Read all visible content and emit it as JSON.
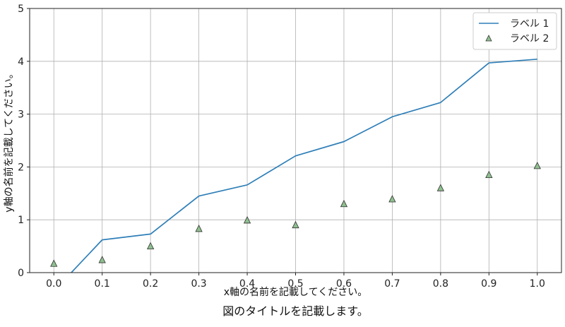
{
  "chart_data": {
    "type": "line",
    "title": "図のタイトルを記載します。",
    "xlabel": "x軸の名前を記載してください。",
    "ylabel": "y軸の名前を記載してください。",
    "xlim": [
      -0.05,
      1.05
    ],
    "ylim": [
      0,
      5
    ],
    "x_ticks": [
      "0.0",
      "0.1",
      "0.2",
      "0.3",
      "0.4",
      "0.5",
      "0.6",
      "0.7",
      "0.8",
      "0.9",
      "1.0"
    ],
    "y_ticks": [
      "0",
      "1",
      "2",
      "3",
      "4",
      "5"
    ],
    "grid": true,
    "legend_position": "top-right",
    "series": [
      {
        "name": "ラベル 1",
        "kind": "line",
        "color": "#2f7fb8",
        "x": [
          0.0,
          0.1,
          0.2,
          0.3,
          0.4,
          0.5,
          0.6,
          0.7,
          0.8,
          0.9,
          1.0
        ],
        "y": [
          -0.35,
          0.62,
          0.73,
          1.45,
          1.66,
          2.21,
          2.48,
          2.95,
          3.22,
          3.97,
          4.04
        ]
      },
      {
        "name": "ラベル 2",
        "kind": "scatter",
        "marker": "triangle",
        "color": "#8fbf8f",
        "edge_color": "#333333",
        "x": [
          0.0,
          0.1,
          0.2,
          0.3,
          0.4,
          0.5,
          0.6,
          0.7,
          0.8,
          0.9,
          1.0
        ],
        "y": [
          0.17,
          0.24,
          0.5,
          0.83,
          0.99,
          0.9,
          1.3,
          1.39,
          1.6,
          1.85,
          2.02
        ]
      }
    ]
  }
}
